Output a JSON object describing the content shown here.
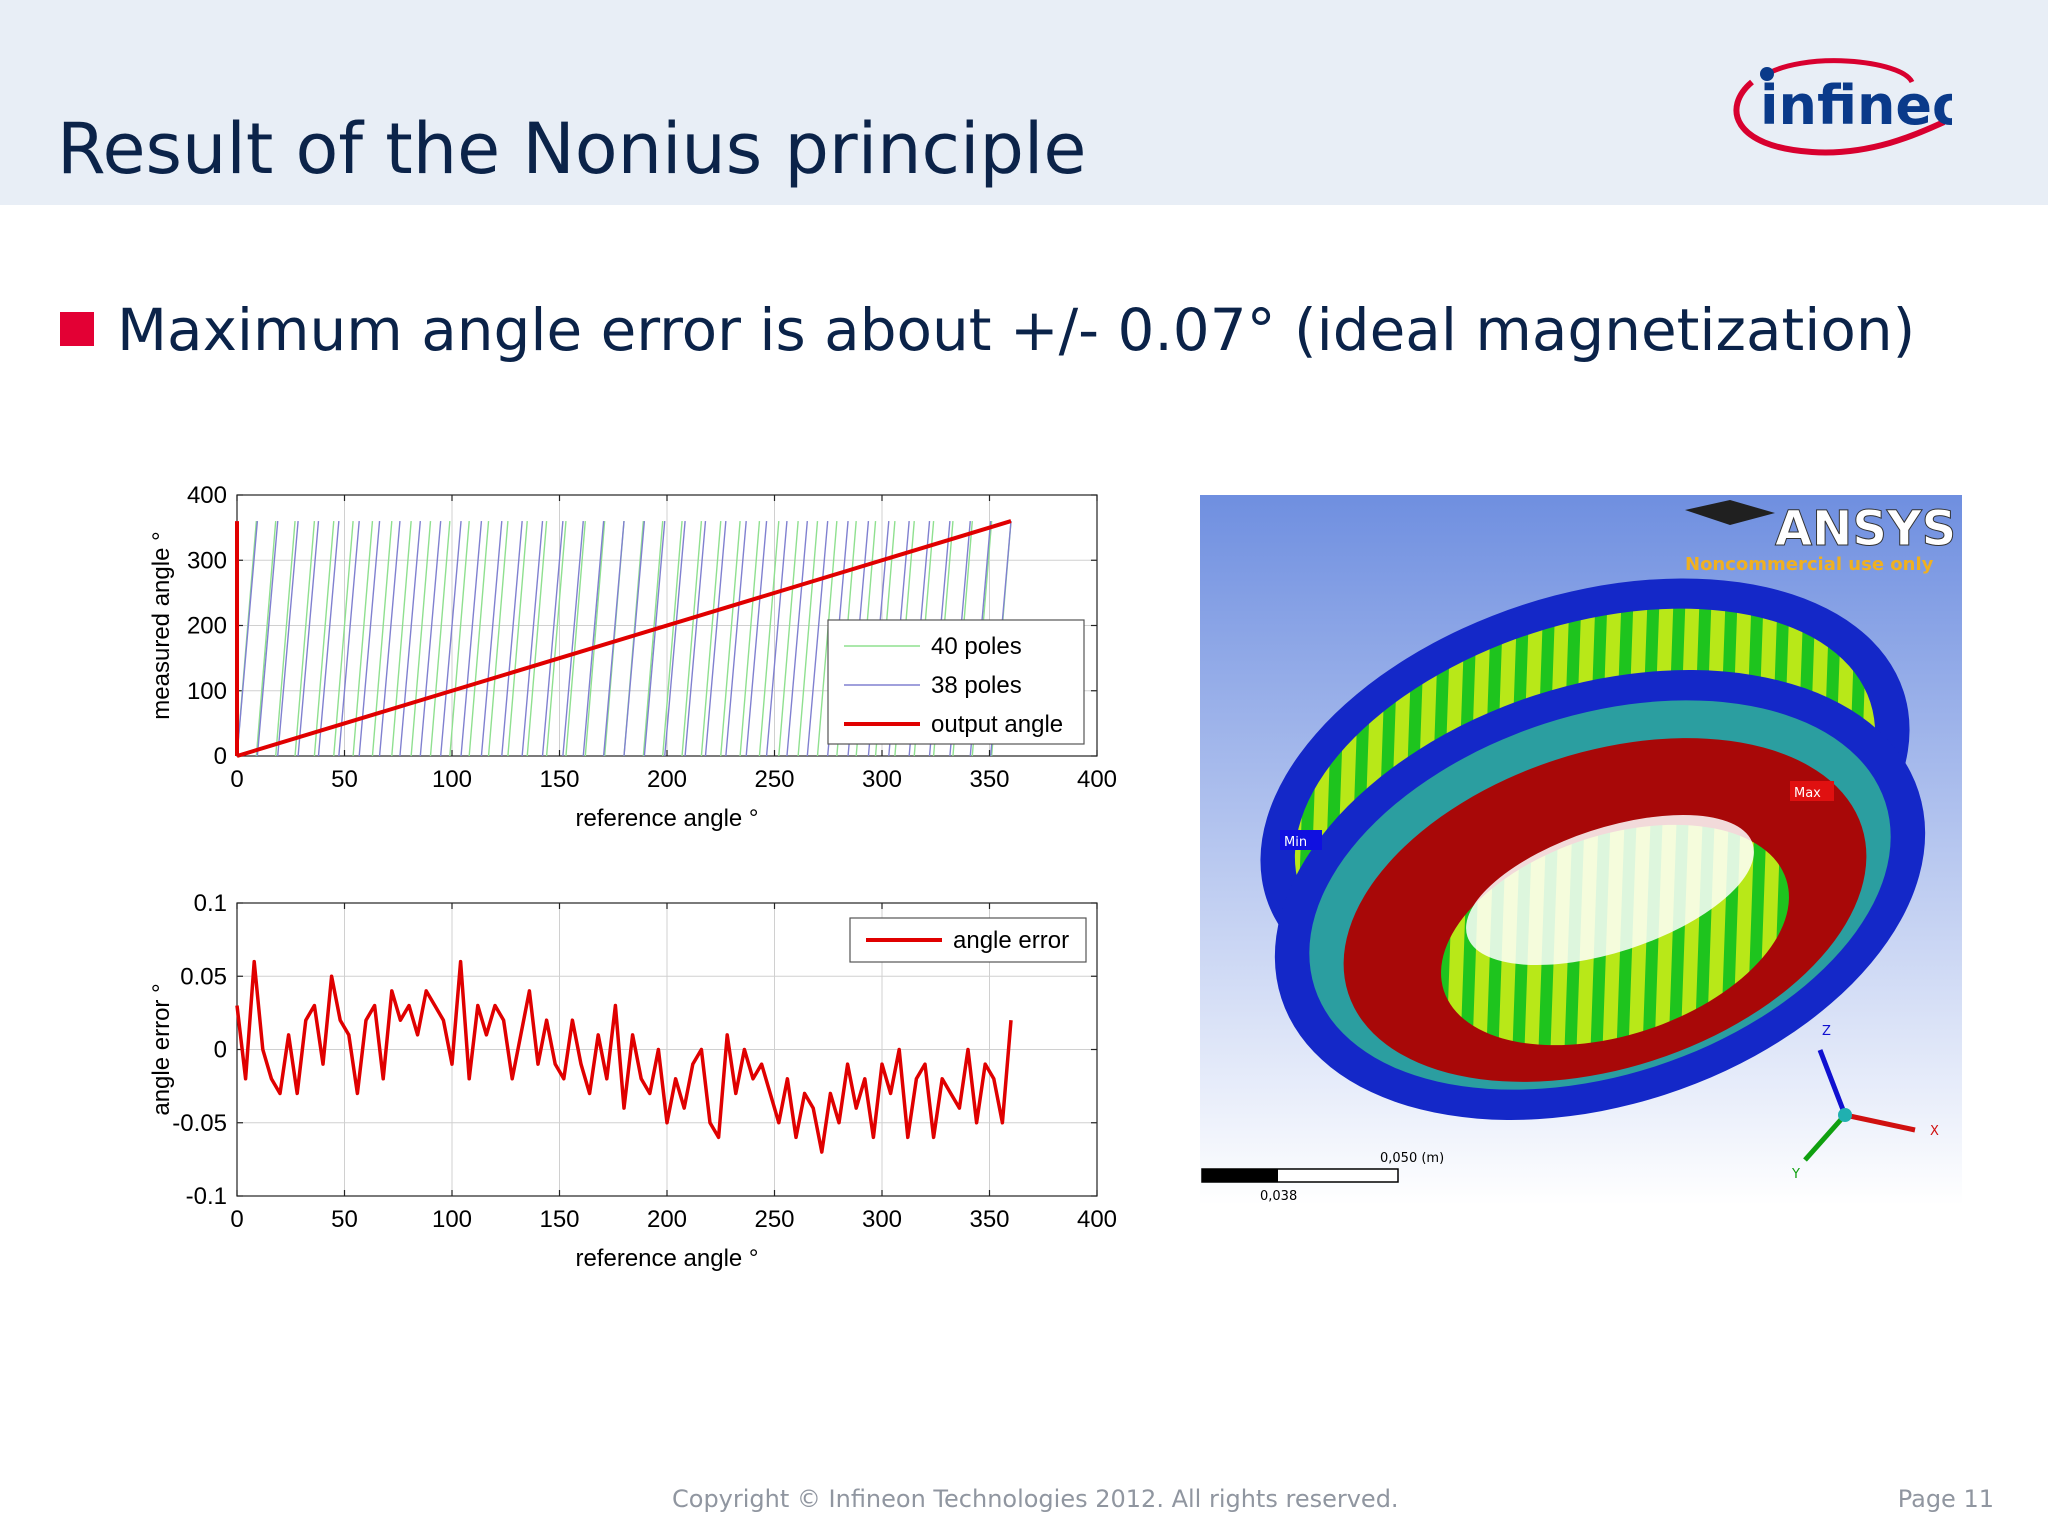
{
  "slide": {
    "title": "Result of the Nonius principle",
    "bullet": "Maximum angle error is about +/- 0.07° (ideal magnetization)",
    "footer": "Copyright © Infineon Technologies 2012. All rights reserved.",
    "page": "Page 11",
    "logo_text": "infineon",
    "colors": {
      "title": "#0b2349",
      "bullet": "#e30034",
      "header_bg": "#e8eef6"
    }
  },
  "ansys_image": {
    "brand": "ANSYS",
    "notice": "Noncommercial use only",
    "min_label": "Min",
    "max_label": "Max",
    "scale_top": "0,050 (m)",
    "scale_bottom": "0,038",
    "axis_x": "X",
    "axis_y": "Y",
    "axis_z": "Z"
  },
  "chart_data": [
    {
      "type": "line",
      "xlabel": "reference angle °",
      "ylabel": "measured angle °",
      "xlim": [
        0,
        400
      ],
      "ylim": [
        0,
        400
      ],
      "xticks": [
        "0",
        "50",
        "100",
        "150",
        "200",
        "250",
        "300",
        "350",
        "400"
      ],
      "yticks": [
        "0",
        "100",
        "200",
        "300",
        "400"
      ],
      "grid": true,
      "legend_position": "right",
      "series": [
        {
          "name": "40 poles",
          "color": "#8fe08f",
          "values": "sawtooth: y = (x*40) mod 360 for x in [0,360]"
        },
        {
          "name": "38 poles",
          "color": "#8080d0",
          "values": "sawtooth: y = (x*38) mod 360 for x in [0,360]"
        },
        {
          "name": "output angle",
          "color": "#e00000",
          "x": [
            0,
            360
          ],
          "y": [
            0,
            360
          ]
        }
      ]
    },
    {
      "type": "line",
      "xlabel": "reference angle °",
      "ylabel": "angle error °",
      "xlim": [
        0,
        400
      ],
      "ylim": [
        -0.1,
        0.1
      ],
      "xticks": [
        "0",
        "50",
        "100",
        "150",
        "200",
        "250",
        "300",
        "350",
        "400"
      ],
      "yticks": [
        "0.1",
        "0.05",
        "0",
        "-0.05",
        "-0.1"
      ],
      "grid": true,
      "legend_position": "top-right",
      "series": [
        {
          "name": "angle error",
          "color": "#e00000",
          "x": [
            0,
            4,
            8,
            12,
            16,
            20,
            24,
            28,
            32,
            36,
            40,
            44,
            48,
            52,
            56,
            60,
            64,
            68,
            72,
            76,
            80,
            84,
            88,
            92,
            96,
            100,
            104,
            108,
            112,
            116,
            120,
            124,
            128,
            132,
            136,
            140,
            144,
            148,
            152,
            156,
            160,
            164,
            168,
            172,
            176,
            180,
            184,
            188,
            192,
            196,
            200,
            204,
            208,
            212,
            216,
            220,
            224,
            228,
            232,
            236,
            240,
            244,
            248,
            252,
            256,
            260,
            264,
            268,
            272,
            276,
            280,
            284,
            288,
            292,
            296,
            300,
            304,
            308,
            312,
            316,
            320,
            324,
            328,
            332,
            336,
            340,
            344,
            348,
            352,
            356,
            360
          ],
          "y": [
            0.03,
            -0.02,
            0.06,
            0.0,
            -0.02,
            -0.03,
            0.01,
            -0.03,
            0.02,
            0.03,
            -0.01,
            0.05,
            0.02,
            0.01,
            -0.03,
            0.02,
            0.03,
            -0.02,
            0.04,
            0.02,
            0.03,
            0.01,
            0.04,
            0.03,
            0.02,
            -0.01,
            0.06,
            -0.02,
            0.03,
            0.01,
            0.03,
            0.02,
            -0.02,
            0.01,
            0.04,
            -0.01,
            0.02,
            -0.01,
            -0.02,
            0.02,
            -0.01,
            -0.03,
            0.01,
            -0.02,
            0.03,
            -0.04,
            0.01,
            -0.02,
            -0.03,
            0.0,
            -0.05,
            -0.02,
            -0.04,
            -0.01,
            0.0,
            -0.05,
            -0.06,
            0.01,
            -0.03,
            0.0,
            -0.02,
            -0.01,
            -0.03,
            -0.05,
            -0.02,
            -0.06,
            -0.03,
            -0.04,
            -0.07,
            -0.03,
            -0.05,
            -0.01,
            -0.04,
            -0.02,
            -0.06,
            -0.01,
            -0.03,
            0.0,
            -0.06,
            -0.02,
            -0.01,
            -0.06,
            -0.02,
            -0.03,
            -0.04,
            0.0,
            -0.05,
            -0.01,
            -0.02,
            -0.05,
            0.02
          ]
        }
      ]
    }
  ]
}
